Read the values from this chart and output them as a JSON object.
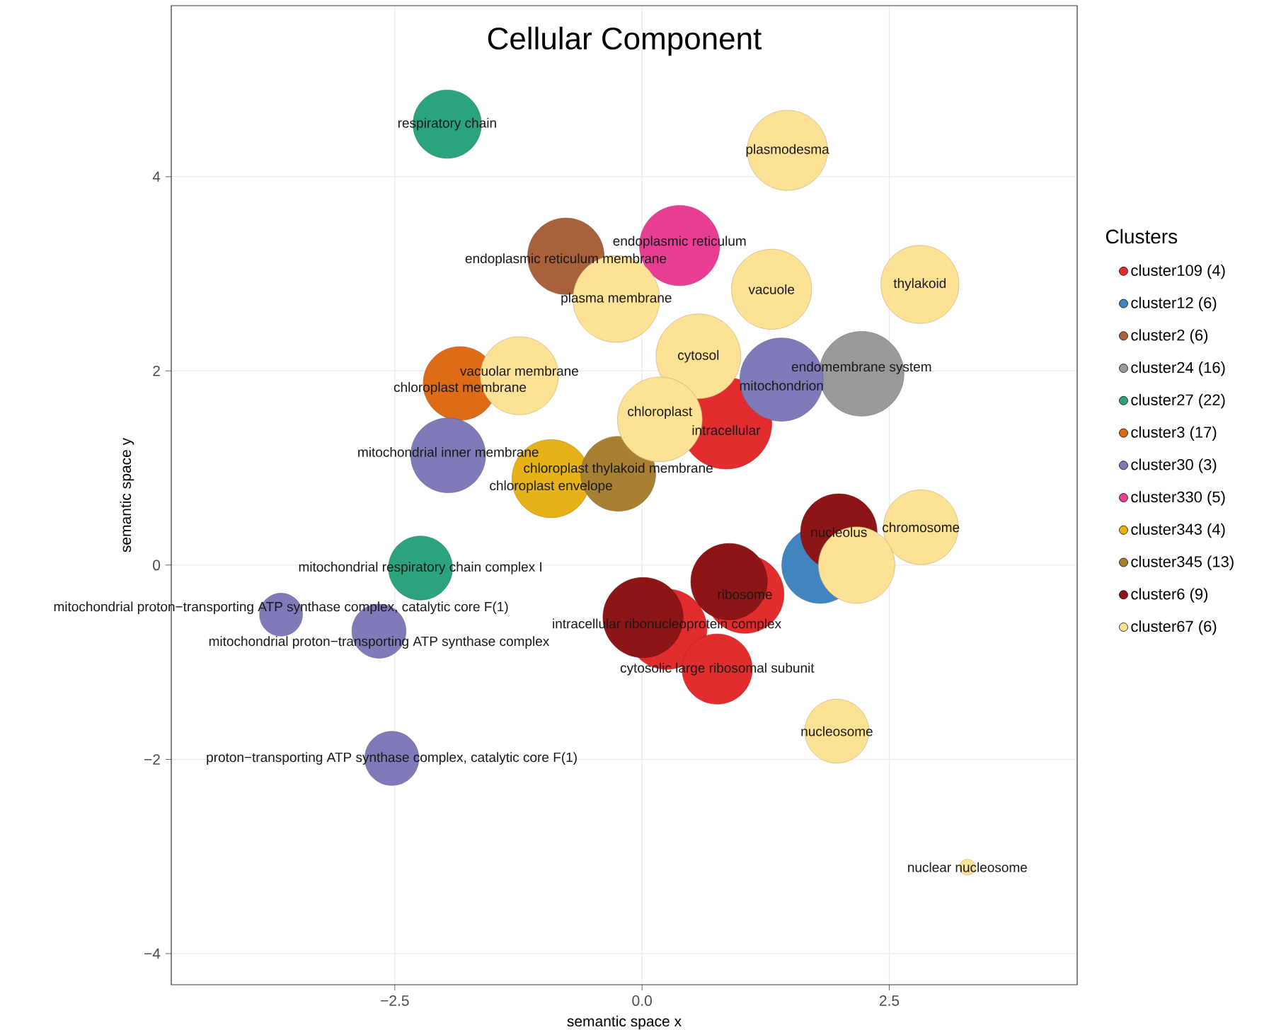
{
  "chart_data": {
    "type": "bubble",
    "title": "Cellular Component",
    "xlabel": "semantic space x",
    "ylabel": "semantic space y",
    "legend_title": "Clusters",
    "legend": "right",
    "grid": true,
    "relative": false,
    "xlim": [
      -4.76,
      4.4
    ],
    "ylim": [
      -4.32,
      5.76
    ],
    "xticks": [
      {
        "value": -2.5,
        "label": "−2.5"
      },
      {
        "value": 0,
        "label": "0.0"
      },
      2.5
    ],
    "yticks": [
      {
        "value": -4,
        "label": "−4"
      },
      {
        "value": -2,
        "label": "−2"
      },
      0,
      2,
      4
    ],
    "series": [
      {
        "name": "cluster109 (4)",
        "color": "#e32c2e",
        "x": [
          0.85,
          1.04,
          0.25,
          0.76
        ],
        "values": [
          1.46,
          -0.3,
          -0.66,
          -1.07
        ],
        "sizes": [
          1,
          0.73,
          0.77,
          0.59
        ]
      },
      {
        "name": "cluster12 (6)",
        "color": "#4185be",
        "x": [
          1.8
        ],
        "values": [
          0.0
        ],
        "sizes": [
          0.7
        ]
      },
      {
        "name": "cluster2 (6)",
        "color": "#a8613a",
        "x": [
          -0.77
        ],
        "values": [
          3.18
        ],
        "sizes": [
          0.7
        ]
      },
      {
        "name": "cluster24 (16)",
        "color": "#999999",
        "x": [
          2.22
        ],
        "values": [
          1.97
        ],
        "sizes": [
          0.86
        ]
      },
      {
        "name": "cluster27 (22)",
        "color": "#2ba37e",
        "x": [
          -1.97,
          -2.24
        ],
        "values": [
          4.54,
          -0.03
        ],
        "sizes": [
          0.56,
          0.49
        ]
      },
      {
        "name": "cluster3 (17)",
        "color": "#dd6b17",
        "x": [
          -1.84
        ],
        "values": [
          1.87
        ],
        "sizes": [
          0.65
        ]
      },
      {
        "name": "cluster30 (3)",
        "color": "#7f7bb9",
        "x": [
          1.41,
          -1.96,
          -3.65,
          -2.66,
          -2.53
        ],
        "values": [
          1.91,
          1.13,
          -0.51,
          -0.68,
          -1.99
        ],
        "sizes": [
          0.83,
          0.67,
          0.22,
          0.35,
          0.35
        ]
      },
      {
        "name": "cluster330 (5)",
        "color": "#e83d93",
        "x": [
          0.38
        ],
        "values": [
          3.29
        ],
        "sizes": [
          0.77
        ]
      },
      {
        "name": "cluster343 (4)",
        "color": "#e7b118",
        "x": [
          -0.92
        ],
        "values": [
          0.89
        ],
        "sizes": [
          0.73
        ]
      },
      {
        "name": "cluster345 (13)",
        "color": "#a98033",
        "x": [
          -0.24
        ],
        "values": [
          0.94
        ],
        "sizes": [
          0.67
        ]
      },
      {
        "name": "cluster6 (9)",
        "color": "#8e1516",
        "x": [
          1.99,
          0.88,
          0.01
        ],
        "values": [
          0.34,
          -0.17,
          -0.54
        ],
        "sizes": [
          0.7,
          0.7,
          0.77
        ]
      },
      {
        "name": "cluster67 (6)",
        "color": "#fde295",
        "x": [
          1.47,
          1.31,
          2.81,
          -0.26,
          0.57,
          -1.24,
          0.18,
          2.82,
          2.17,
          1.97,
          3.29
        ],
        "values": [
          4.27,
          2.84,
          2.89,
          2.74,
          2.15,
          1.95,
          1.5,
          0.39,
          0.0,
          -1.71,
          -3.11
        ],
        "sizes": [
          0.77,
          0.77,
          0.73,
          0.9,
          0.86,
          0.73,
          0.86,
          0.67,
          0.7,
          0.49,
          0.03
        ]
      }
    ],
    "annotations": [
      {
        "text": "respiratory chain",
        "x": -1.97,
        "y": 4.54
      },
      {
        "text": "plasmodesma",
        "x": 1.47,
        "y": 4.27
      },
      {
        "text": "endoplasmic reticulum membrane",
        "x": -0.77,
        "y": 3.18
      },
      {
        "text": "endoplasmic reticulum",
        "x": 0.38,
        "y": 3.29
      },
      {
        "text": "vacuole",
        "x": 1.31,
        "y": 2.84
      },
      {
        "text": "thylakoid",
        "x": 2.81,
        "y": 2.89
      },
      {
        "text": "plasma membrane",
        "x": -0.26,
        "y": 2.74
      },
      {
        "text": "cytosol",
        "x": 0.57,
        "y": 2.15
      },
      {
        "text": "endomembrane system",
        "x": 2.22,
        "y": 1.97
      },
      {
        "text": "mitochondrion",
        "x": 1.41,
        "y": 1.91
      },
      {
        "text": "vacuolar membrane",
        "x": -1.24,
        "y": 1.95
      },
      {
        "text": "chloroplast membrane",
        "x": -1.84,
        "y": 1.87
      },
      {
        "text": "chloroplast",
        "x": 0.18,
        "y": 1.5
      },
      {
        "text": "intracellular",
        "x": 0.85,
        "y": 1.46
      },
      {
        "text": "mitochondrial inner membrane",
        "x": -1.96,
        "y": 1.13
      },
      {
        "text": "chloroplast thylakoid membrane",
        "x": -0.24,
        "y": 0.94
      },
      {
        "text": "chloroplast envelope",
        "x": -0.92,
        "y": 0.89
      },
      {
        "text": "chromosome",
        "x": 2.82,
        "y": 0.39
      },
      {
        "text": "nucleolus",
        "x": 1.99,
        "y": 0.34
      },
      {
        "text": "ribosome",
        "x": 1.04,
        "y": -0.3
      },
      {
        "text": "intracellular ribonucleoprotein complex",
        "x": 0.25,
        "y": -0.66
      },
      {
        "text": "cytosolic large ribosomal subunit",
        "x": 0.76,
        "y": -1.07
      },
      {
        "text": "nucleosome",
        "x": 1.97,
        "y": -1.71
      },
      {
        "text": "nuclear nucleosome",
        "x": 3.29,
        "y": -3.11
      },
      {
        "text": "mitochondrial respiratory chain complex I",
        "x": -2.24,
        "y": -0.03
      },
      {
        "text": "mitochondrial proton−transporting ATP synthase complex, catalytic core F(1)",
        "x": -3.65,
        "y": -0.51
      },
      {
        "text": "mitochondrial proton−transporting ATP synthase complex",
        "x": -2.66,
        "y": -0.68
      },
      {
        "text": "proton−transporting ATP synthase complex, catalytic core F(1)",
        "x": -2.53,
        "y": -1.99
      }
    ]
  }
}
